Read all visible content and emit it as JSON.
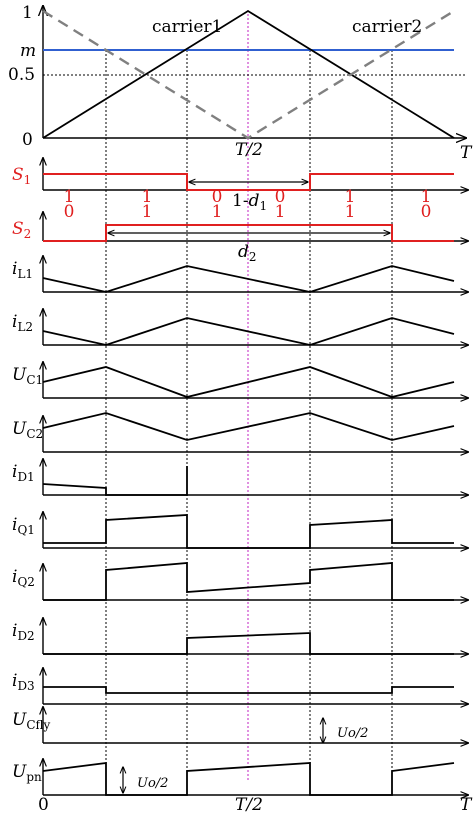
{
  "top": {
    "y_ticks": {
      "one": "1",
      "m": "m",
      "half": "0.5",
      "zero": "0"
    },
    "carrier1_label": "carrier1",
    "carrier2_label": "carrier2",
    "half_period_label": "T/2",
    "period_label": "T"
  },
  "switching": {
    "s1_label": "S",
    "s1_sub": "1",
    "s2_label": "S",
    "s2_sub": "2",
    "one_minus_d1_prefix": "1-",
    "d1_var": "d",
    "d1_sub": "1",
    "d2_var": "d",
    "d2_sub": "2",
    "states": [
      {
        "top": "1",
        "bottom": "0"
      },
      {
        "top": "1",
        "bottom": "1"
      },
      {
        "top": "0",
        "bottom": "1"
      },
      {
        "top": "0",
        "bottom": "1"
      },
      {
        "top": "1",
        "bottom": "1"
      },
      {
        "top": "1",
        "bottom": "0"
      }
    ]
  },
  "waveforms": [
    {
      "var": "i",
      "sub": "L1"
    },
    {
      "var": "i",
      "sub": "L2"
    },
    {
      "var": "U",
      "sub": "C1"
    },
    {
      "var": "U",
      "sub": "C2"
    },
    {
      "var": "i",
      "sub": "D1"
    },
    {
      "var": "i",
      "sub": "Q1"
    },
    {
      "var": "i",
      "sub": "Q2"
    },
    {
      "var": "i",
      "sub": "D2"
    },
    {
      "var": "i",
      "sub": "D3"
    },
    {
      "var": "U",
      "sub": "Cfly"
    },
    {
      "var": "U",
      "sub": "pn"
    }
  ],
  "annotations": {
    "uo_half_1": "Uo/2",
    "uo_half_2": "Uo/2"
  },
  "bottom_axis": {
    "zero": "0",
    "half_period": "T/2",
    "period": "T"
  },
  "colors": {
    "carrier": "#000000",
    "carrier2_dashed": "#808080",
    "m_level": "#3060d0",
    "switch_signal": "#e02020",
    "midline": "#c020c0"
  }
}
